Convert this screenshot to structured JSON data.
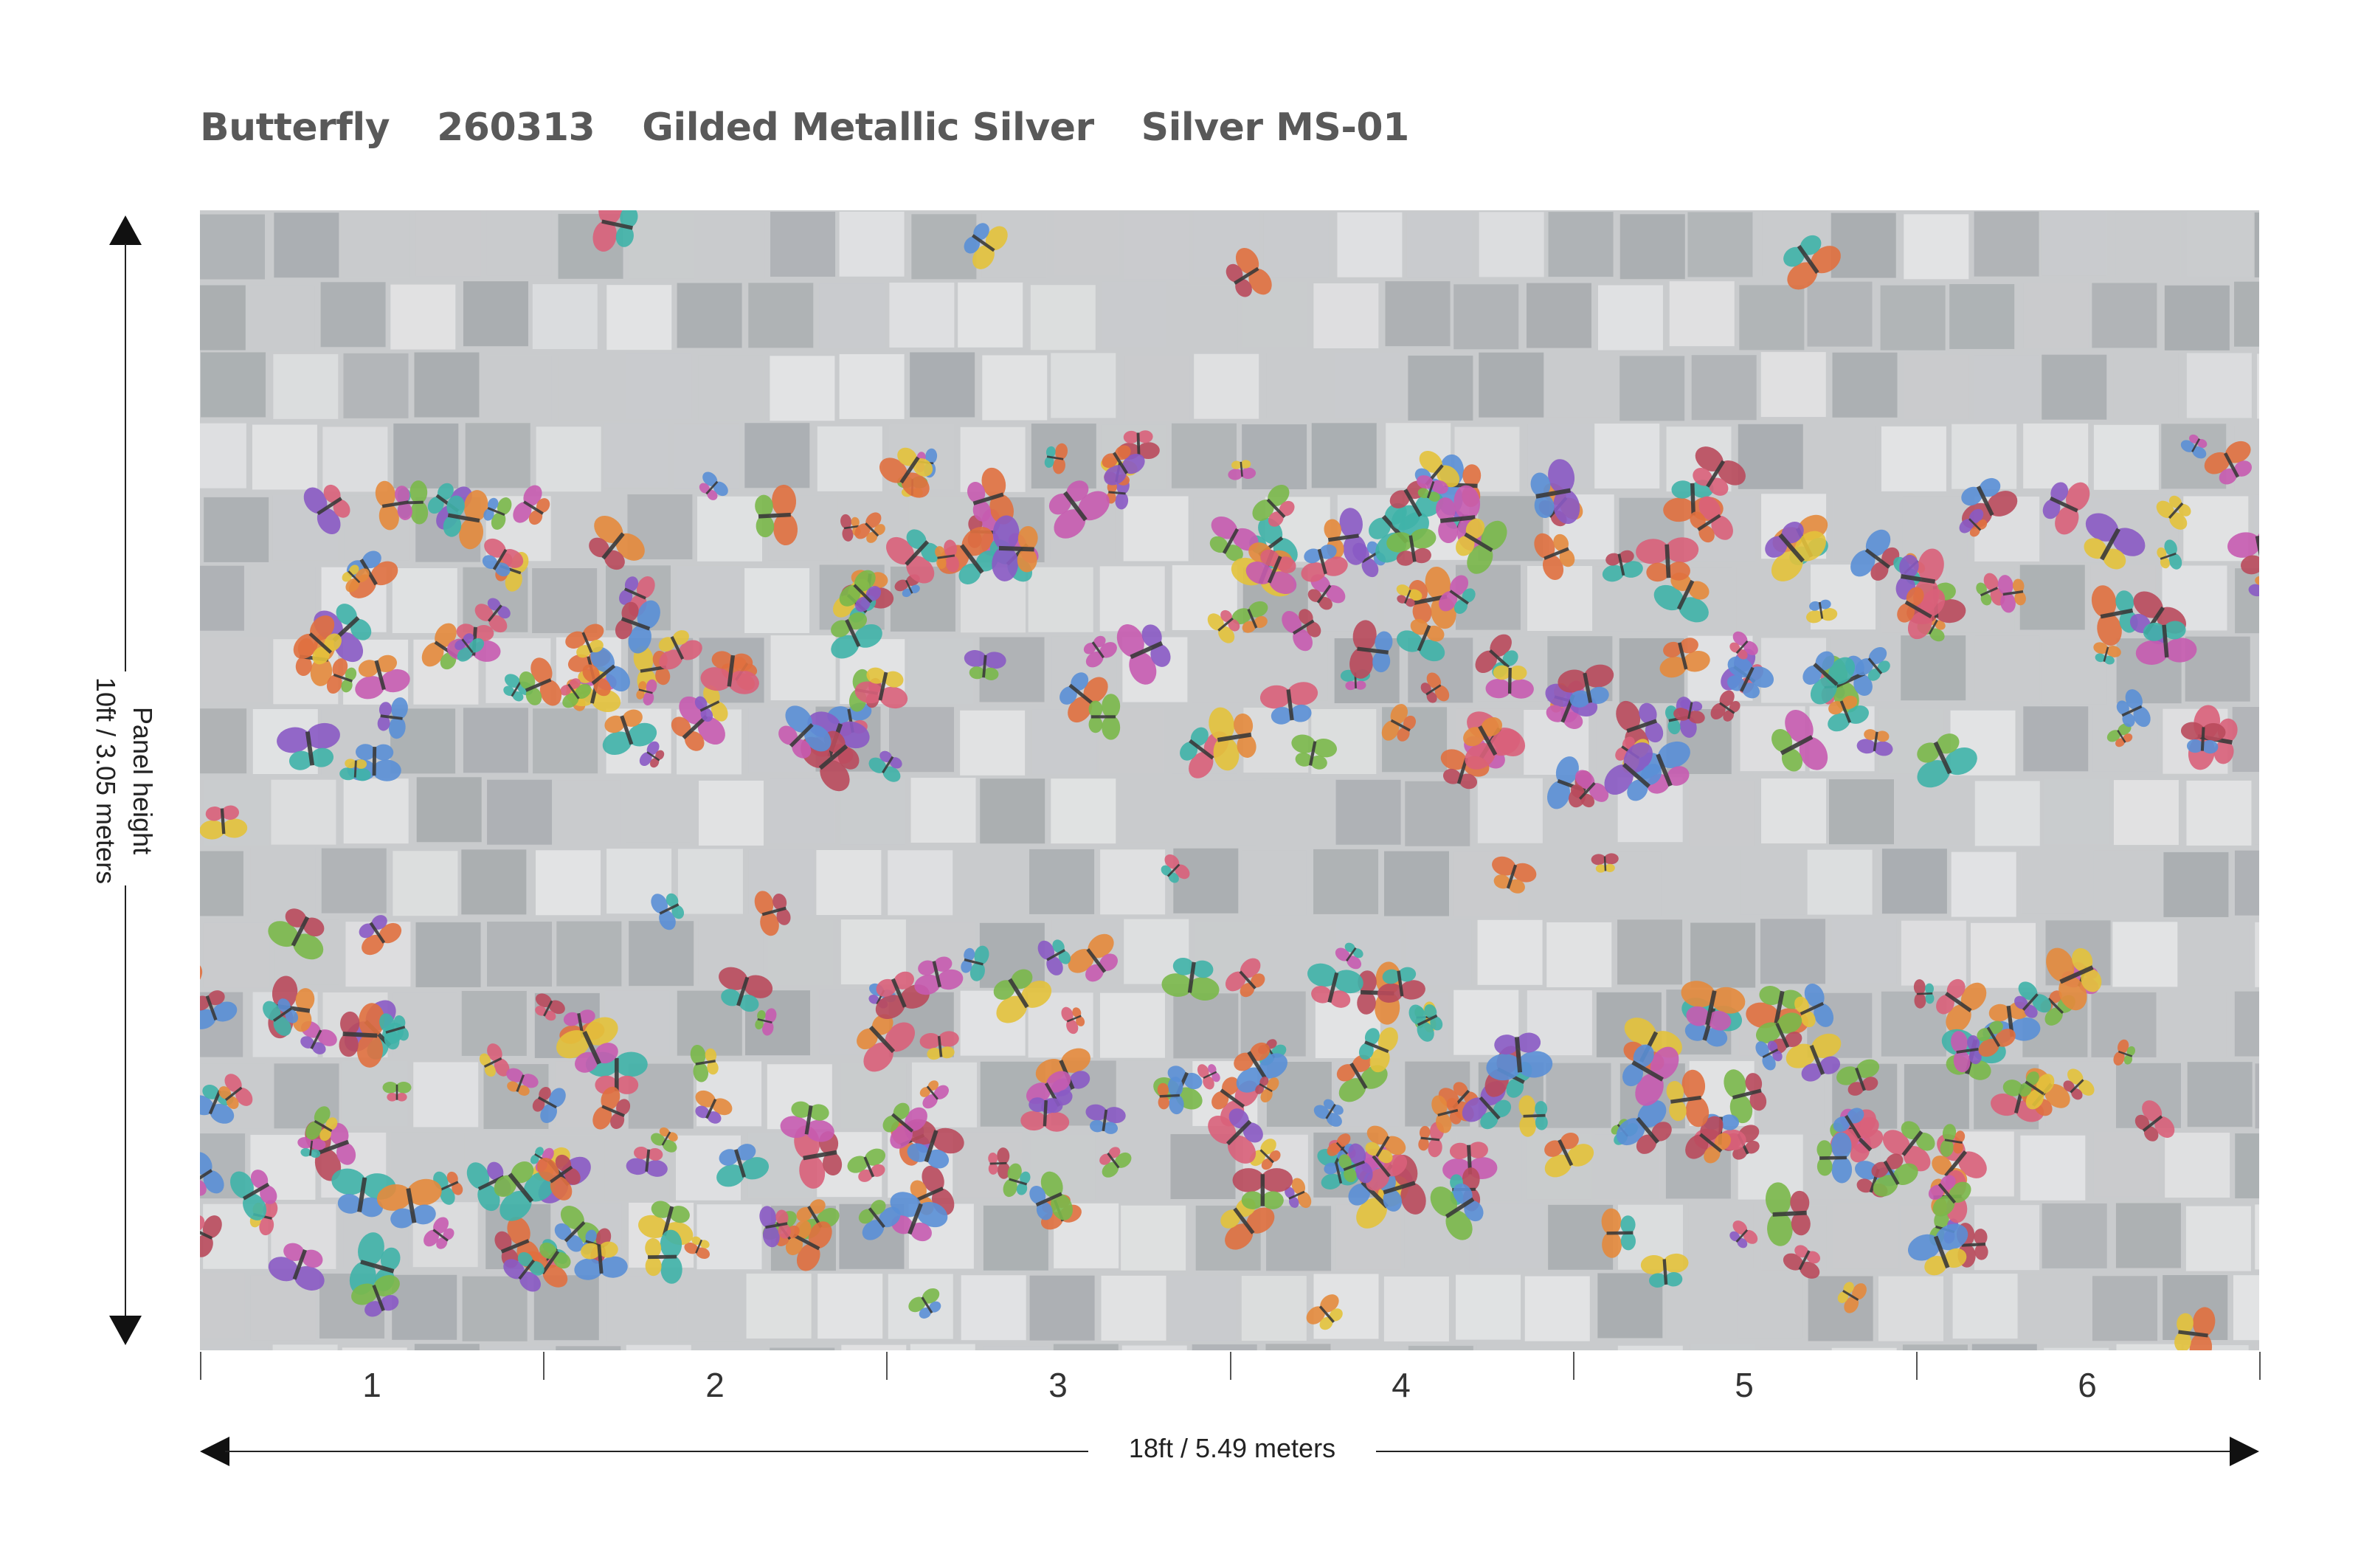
{
  "header": {
    "pattern_name": "Butterfly",
    "sku": "260313",
    "finish": "Gilded Metallic Silver",
    "colorway": "Silver MS-01"
  },
  "dimensions": {
    "height_label": "Panel height",
    "height_value": "10ft / 3.05 meters",
    "width_value": "18ft / 5.49 meters"
  },
  "panels": [
    "1",
    "2",
    "3",
    "4",
    "5",
    "6"
  ],
  "colors": {
    "title_gray": "#595959",
    "silver_leaf_base": "#c9cbcd",
    "silver_leaf_dark": "#a9adb0",
    "silver_leaf_light": "#e2e3e4"
  },
  "mural": {
    "motif": "butterflies",
    "background": "silver leaf squares"
  }
}
